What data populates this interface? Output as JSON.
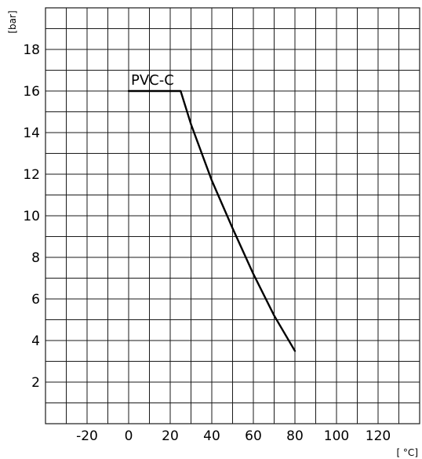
{
  "chart_data": {
    "type": "line",
    "title": "",
    "xlabel": "[ °C]",
    "ylabel": "[bar]",
    "xlim": [
      -40,
      140
    ],
    "ylim": [
      0,
      20
    ],
    "x_ticks": [
      -20,
      0,
      20,
      40,
      60,
      80,
      100,
      120
    ],
    "y_ticks": [
      2,
      4,
      6,
      8,
      10,
      12,
      14,
      16,
      18
    ],
    "grid": true,
    "series": [
      {
        "name": "PVC-C",
        "x": [
          0,
          25,
          30,
          40,
          50,
          60,
          70,
          80
        ],
        "y": [
          16,
          16,
          14.4,
          11.7,
          9.4,
          7.2,
          5.2,
          3.5
        ]
      }
    ]
  }
}
